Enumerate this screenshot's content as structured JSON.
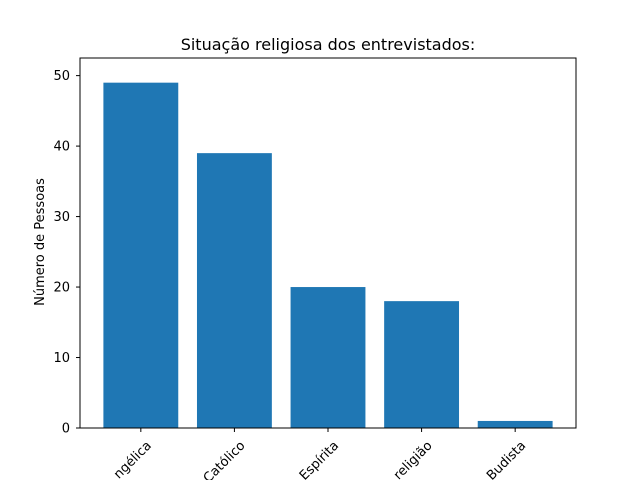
{
  "chart_data": {
    "type": "bar",
    "title": "Situação religiosa dos entrevistados:",
    "xlabel": "",
    "ylabel": "Número de Pessoas",
    "categories": [
      "ngélica",
      "Católico",
      "Espírita",
      "religião",
      "Budista"
    ],
    "values": [
      49,
      39,
      20,
      18,
      1
    ],
    "ylim": [
      0,
      52.5
    ],
    "yticks": [
      0,
      10,
      20,
      30,
      40,
      50
    ],
    "grid": false,
    "legend": "none",
    "bar_color": "#1f77b4",
    "xtick_rotation_deg": 45
  }
}
